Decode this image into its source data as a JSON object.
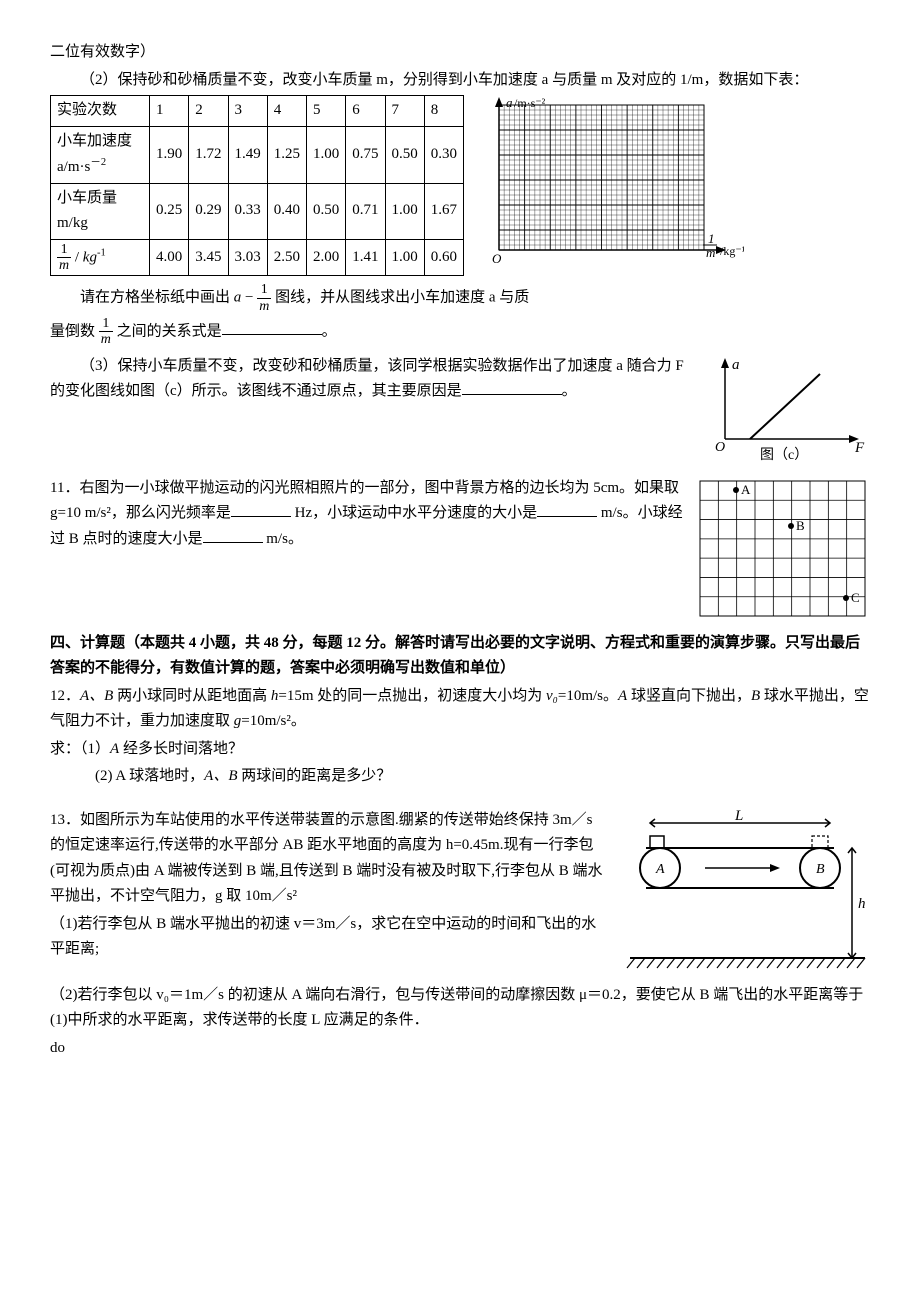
{
  "p1": "二位有效数字）",
  "p2": "（2）保持砂和砂桶质量不变，改变小车质量 m，分别得到小车加速度 a 与质量 m 及对应的 1/m，数据如下表：",
  "table": {
    "header_label": "实验次数",
    "cols": [
      "1",
      "2",
      "3",
      "4",
      "5",
      "6",
      "7",
      "8"
    ],
    "row1_label_a": "小车加速度",
    "row1_label_b": "a/m·s",
    "row1_exp": "－2",
    "row1": [
      "1.90",
      "1.72",
      "1.49",
      "1.25",
      "1.00",
      "0.75",
      "0.50",
      "0.30"
    ],
    "row2_label_a": "小车质量",
    "row2_label_b": "m/kg",
    "row2": [
      "0.25",
      "0.29",
      "0.33",
      "0.40",
      "0.50",
      "0.71",
      "1.00",
      "1.67"
    ],
    "row3_unit": "kg",
    "row3_exp": "-1",
    "row3": [
      "4.00",
      "3.45",
      "3.03",
      "2.50",
      "2.00",
      "1.41",
      "1.00",
      "0.60"
    ]
  },
  "grid_axis": {
    "y_label_a": "a",
    "y_label_unit": "/m·s⁻²",
    "x_label_unit": "/kg⁻¹",
    "origin": "O"
  },
  "p3a": "请在方格坐标纸中画出",
  "p3b": "图线，并从图线求出小车加速度 a 与质",
  "p4a": "量倒数",
  "p4b": "之间的关系式是",
  "p4c": "。",
  "p5a": "（3）保持小车质量不变，改变砂和砂桶质量，该同学根据实验数据作出了加速度 a 随合力 F 的变化图线如图（c）所示。该图线不通过原点，其主要原因是",
  "p5b": "。",
  "graph_c": {
    "y": "a",
    "x": "F",
    "origin": "O",
    "caption": "图（c）"
  },
  "q11a": "11．右图为一小球做平抛运动的闪光照相照片的一部分，图中背景方格的边长均为 5cm。如果取 g=10 m/s²，那么闪光频率是",
  "q11b": " Hz，小球运动中水平分速度的大小是",
  "q11c": " m/s。小球经过 B 点时的速度大小是",
  "q11d": " m/s。",
  "grid_labels": {
    "A": "A",
    "B": "B",
    "C": "C"
  },
  "sec4": "四、计算题（本题共 4 小题，共 48 分，每题 12 分。解答时请写出必要的文字说明、方程式和重要的演算步骤。只写出最后答案的不能得分，有数值计算的题，答案中必须明确写出数值和单位）",
  "q12a": "12．",
  "q12b": " 两小球同时从距地面高 ",
  "q12c": "=15m 处的同一点抛出，初速度大小均为 ",
  "q12d": "=10m/s。",
  "q12e": " 球竖直向下抛出，",
  "q12f": " 球水平抛出，空气阻力不计，重力加速度取 ",
  "q12g": "=10m/s²。",
  "q12_ask": "求：（1）",
  "q12_ask2": " 经多长时间落地？",
  "q12_2a": "(2) A 球落地时，",
  "q12_2b": " 两球间的距离是多少？",
  "italic_A": "A",
  "italic_B": "B",
  "italic_AB": "A、B",
  "italic_h": "h",
  "italic_v0": "v₀",
  "italic_g": "g",
  "q13a": "13．如图所示为车站使用的水平传送带装置的示意图.绷紧的传送带始终保持 3m／s 的恒定速率运行,传送带的水平部分 AB 距水平地面的高度为 h=0.45m.现有一行李包(可视为质点)由 A 端被传送到 B 端,且传送到 B 端时没有被及时取下,行李包从 B 端水平抛出，不计空气阻力，g 取 10m／s²",
  "q13_1": "（1)若行李包从 B 端水平抛出的初速 v＝3m／s，求它在空中运动的时间和飞出的水平距离;",
  "q13_2": "（2)若行李包以 v₀＝1m／s 的初速从 A 端向右滑行，包与传送带间的动摩擦因数 μ＝0.2，要使它从 B 端飞出的水平距离等于(1)中所求的水平距离，求传送带的长度 L 应满足的条件．",
  "conveyor": {
    "L": "L",
    "A": "A",
    "B": "B",
    "h": "h"
  }
}
